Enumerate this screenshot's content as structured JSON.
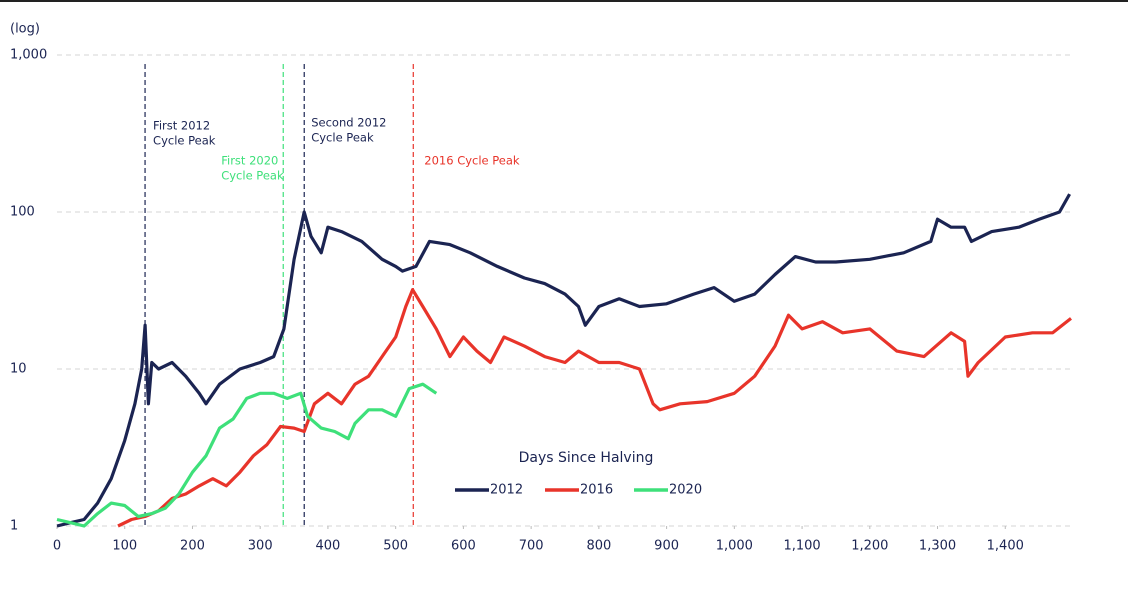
{
  "chart_data": {
    "type": "line",
    "y_label": "(log)",
    "x_label": "Days Since Halving",
    "log_y": true,
    "grid": true,
    "legend": "center",
    "xlim": [
      0,
      1500
    ],
    "ylim": [
      1,
      1000
    ],
    "xticks": [
      0,
      100,
      200,
      300,
      400,
      500,
      600,
      700,
      800,
      900,
      {
        "value": 1000,
        "label": "1,000"
      },
      {
        "value": 1100,
        "label": "1,100"
      },
      {
        "value": 1200,
        "label": "1,200"
      },
      {
        "value": 1300,
        "label": "1,300"
      },
      {
        "value": 1400,
        "label": "1,400"
      }
    ],
    "yticks": [
      1,
      10,
      100,
      {
        "value": 1000,
        "label": "1,000"
      }
    ],
    "annotations": [
      {
        "lines": [
          "First 2012",
          "Cycle Peak"
        ],
        "x": 130,
        "color": "#1b2452"
      },
      {
        "lines": [
          "First 2020",
          "Cycle Peak"
        ],
        "x": 334,
        "color": "#3ee07a"
      },
      {
        "lines": [
          "Second 2012",
          "Cycle Peak"
        ],
        "x": 365,
        "color": "#1b2452"
      },
      {
        "lines": [
          "2016 Cycle Peak"
        ],
        "x": 526,
        "color": "#e8342a"
      }
    ],
    "series": [
      {
        "name": "2012",
        "color": "#1b2452",
        "x": [
          0,
          20,
          40,
          60,
          80,
          100,
          115,
          125,
          130,
          135,
          140,
          150,
          170,
          190,
          210,
          220,
          240,
          270,
          300,
          320,
          335,
          350,
          365,
          375,
          390,
          400,
          420,
          450,
          480,
          500,
          510,
          530,
          550,
          580,
          610,
          650,
          690,
          720,
          750,
          770,
          780,
          800,
          830,
          860,
          900,
          940,
          970,
          1000,
          1030,
          1060,
          1090,
          1120,
          1150,
          1200,
          1250,
          1290,
          1300,
          1320,
          1340,
          1350,
          1380,
          1420,
          1450,
          1480,
          1495
        ],
        "values": [
          1.0,
          1.05,
          1.1,
          1.4,
          2.0,
          3.5,
          6,
          10,
          19,
          6,
          11,
          10,
          11,
          9,
          7,
          6,
          8,
          10,
          11,
          12,
          18,
          50,
          100,
          70,
          55,
          80,
          75,
          65,
          50,
          45,
          42,
          45,
          65,
          62,
          55,
          45,
          38,
          35,
          30,
          25,
          19,
          25,
          28,
          25,
          26,
          30,
          33,
          27,
          30,
          40,
          52,
          48,
          48,
          50,
          55,
          65,
          90,
          80,
          80,
          65,
          75,
          80,
          90,
          100,
          130
        ]
      },
      {
        "name": "2016",
        "color": "#e8342a",
        "x": [
          90,
          110,
          130,
          150,
          170,
          190,
          210,
          230,
          250,
          270,
          290,
          310,
          330,
          350,
          365,
          380,
          400,
          420,
          440,
          460,
          480,
          500,
          515,
          525,
          540,
          560,
          580,
          600,
          620,
          640,
          660,
          690,
          720,
          750,
          770,
          800,
          830,
          860,
          880,
          890,
          920,
          960,
          1000,
          1030,
          1060,
          1080,
          1100,
          1130,
          1160,
          1200,
          1240,
          1280,
          1320,
          1340,
          1345,
          1360,
          1400,
          1440,
          1470,
          1497
        ],
        "values": [
          1.0,
          1.1,
          1.15,
          1.25,
          1.5,
          1.6,
          1.8,
          2.0,
          1.8,
          2.2,
          2.8,
          3.3,
          4.3,
          4.2,
          4.0,
          6,
          7,
          6,
          8,
          9,
          12,
          16,
          25,
          32,
          25,
          18,
          12,
          16,
          13,
          11,
          16,
          14,
          12,
          11,
          13,
          11,
          11,
          10,
          6,
          5.5,
          6,
          6.2,
          7,
          9,
          14,
          22,
          18,
          20,
          17,
          18,
          13,
          12,
          17,
          15,
          9,
          11,
          16,
          17,
          17,
          21
        ]
      },
      {
        "name": "2020",
        "color": "#3ee07a",
        "x": [
          0,
          20,
          40,
          60,
          80,
          100,
          120,
          140,
          160,
          180,
          200,
          220,
          240,
          260,
          280,
          300,
          320,
          340,
          360,
          370,
          390,
          410,
          430,
          440,
          460,
          480,
          500,
          520,
          540,
          560
        ],
        "values": [
          1.1,
          1.05,
          1.0,
          1.2,
          1.4,
          1.35,
          1.15,
          1.2,
          1.3,
          1.6,
          2.2,
          2.8,
          4.2,
          4.8,
          6.5,
          7,
          7,
          6.5,
          7,
          5,
          4.2,
          4,
          3.6,
          4.5,
          5.5,
          5.5,
          5.0,
          7.5,
          8,
          7
        ]
      }
    ]
  }
}
